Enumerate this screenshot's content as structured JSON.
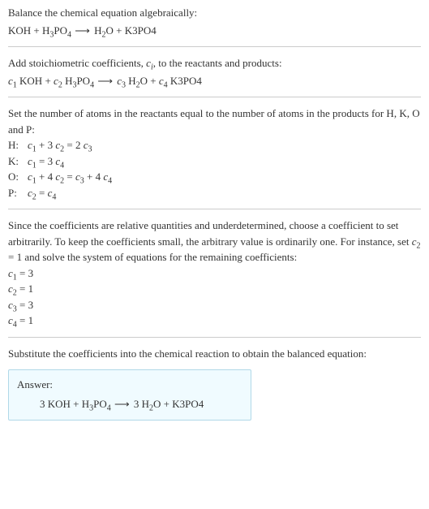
{
  "s1": {
    "intro": "Balance the chemical equation algebraically:",
    "eq_lhs1": "KOH + H",
    "eq_lhs2": "3",
    "eq_lhs3": "PO",
    "eq_lhs4": "4",
    "arrow": "  ⟶  ",
    "eq_rhs1": "H",
    "eq_rhs2": "2",
    "eq_rhs3": "O + K3PO4"
  },
  "s2": {
    "intro1": "Add stoichiometric coefficients, ",
    "ci": "c",
    "ci_sub": "i",
    "intro2": ", to the reactants and products:",
    "c1": "c",
    "c1s": "1",
    "t1": " KOH + ",
    "c2": "c",
    "c2s": "2",
    "t2": " H",
    "t2s": "3",
    "t3": "PO",
    "t3s": "4",
    "arrow": "  ⟶  ",
    "c3": "c",
    "c3s": "3",
    "t4": " H",
    "t4s": "2",
    "t5": "O + ",
    "c4": "c",
    "c4s": "4",
    "t6": " K3PO4"
  },
  "s3": {
    "intro": "Set the number of atoms in the reactants equal to the number of atoms in the products for H, K, O and P:",
    "rows": {
      "H": {
        "label": "H:",
        "lhs1": "c",
        "s1": "1",
        "mid1": " + 3 ",
        "lhs2": "c",
        "s2": "2",
        "eq": " = 2 ",
        "rhs1": "c",
        "s3": "3"
      },
      "K": {
        "label": "K:",
        "lhs1": "c",
        "s1": "1",
        "eq": " = 3 ",
        "rhs1": "c",
        "s2": "4"
      },
      "O": {
        "label": "O:",
        "lhs1": "c",
        "s1": "1",
        "mid1": " + 4 ",
        "lhs2": "c",
        "s2": "2",
        "eq": " = ",
        "rhs1": "c",
        "s3": "3",
        "mid2": " + 4 ",
        "rhs2": "c",
        "s4": "4"
      },
      "P": {
        "label": "P:",
        "lhs1": "c",
        "s1": "2",
        "eq": " = ",
        "rhs1": "c",
        "s2": "4"
      }
    }
  },
  "s4": {
    "intro1": "Since the coefficients are relative quantities and underdetermined, choose a coefficient to set arbitrarily. To keep the coefficients small, the arbitrary value is ordinarily one. For instance, set ",
    "cv": "c",
    "cvs": "2",
    "intro2": " = 1 and solve the system of equations for the remaining coefficients:",
    "l1a": "c",
    "l1s": "1",
    "l1b": " = 3",
    "l2a": "c",
    "l2s": "2",
    "l2b": " = 1",
    "l3a": "c",
    "l3s": "3",
    "l3b": " = 3",
    "l4a": "c",
    "l4s": "4",
    "l4b": " = 1"
  },
  "s5": {
    "intro": "Substitute the coefficients into the chemical reaction to obtain the balanced equation:",
    "answer_label": "Answer:",
    "a1": "3 KOH + H",
    "a1s": "3",
    "a2": "PO",
    "a2s": "4",
    "arrow": "  ⟶  ",
    "a3": "3 H",
    "a3s": "2",
    "a4": "O + K3PO4"
  }
}
